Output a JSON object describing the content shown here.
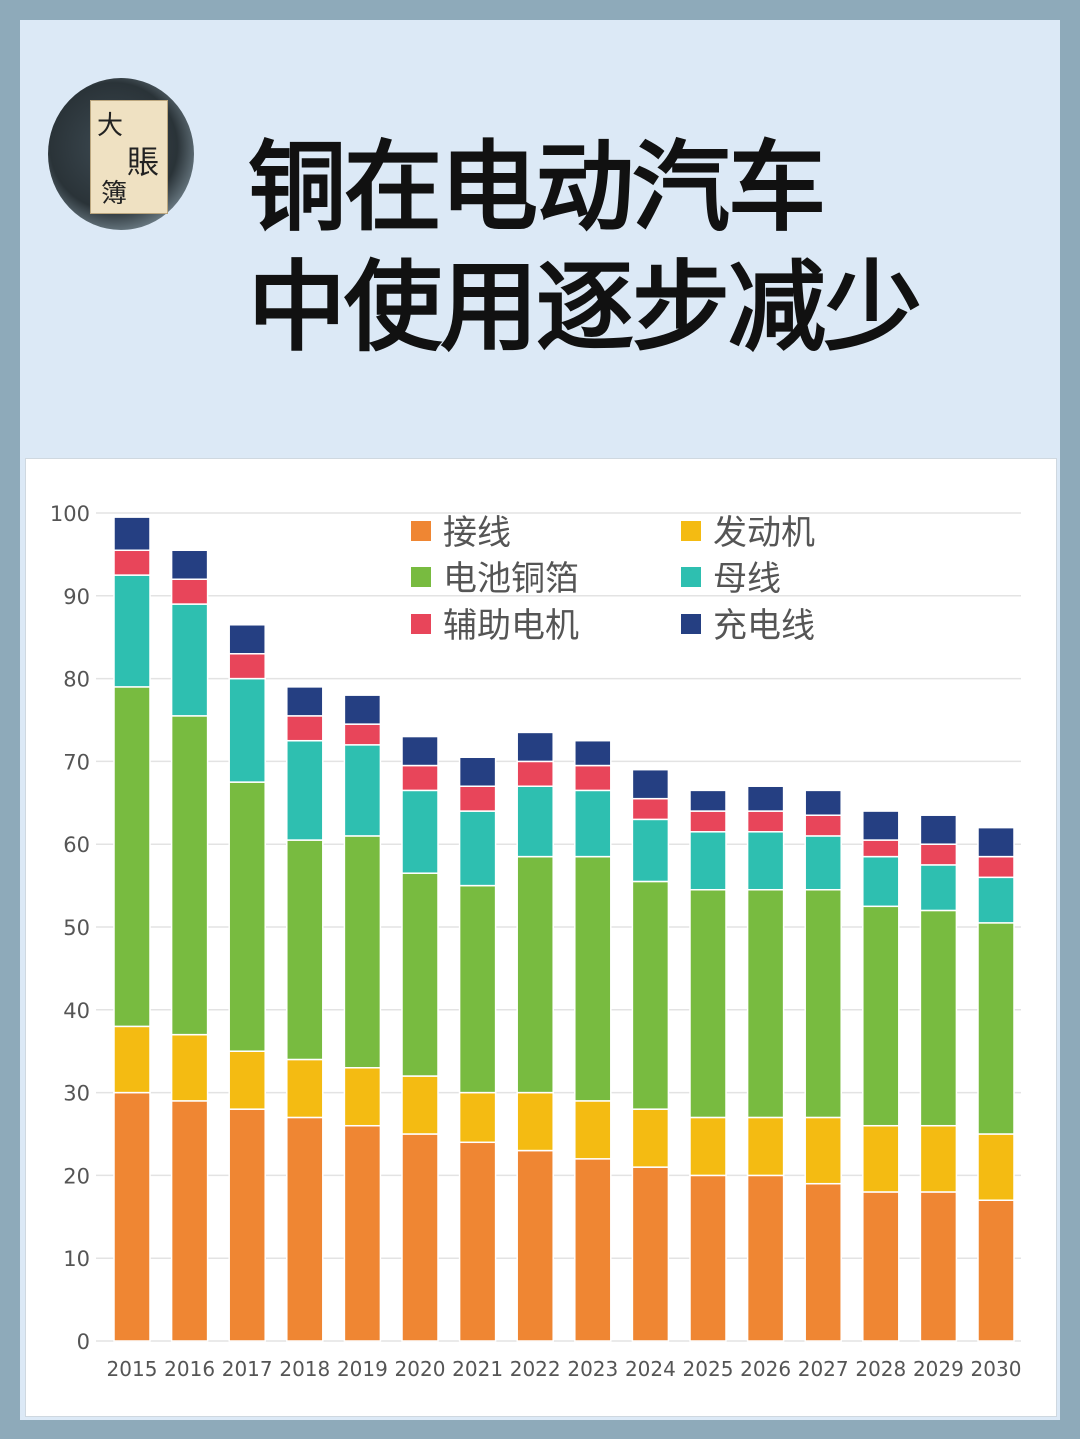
{
  "header": {
    "title_line1": "铜在电动汽车",
    "title_line2": "中使用逐步减少",
    "logo_text": "大賬簿"
  },
  "chart_data": {
    "type": "bar",
    "stacked": true,
    "title": "",
    "xlabel": "",
    "ylabel": "",
    "ylim": [
      0,
      100
    ],
    "yticks": [
      0,
      10,
      20,
      30,
      40,
      50,
      60,
      70,
      80,
      90,
      100
    ],
    "grid": true,
    "legend_position": "top-right",
    "categories": [
      "2015",
      "2016",
      "2017",
      "2018",
      "2019",
      "2020",
      "2021",
      "2022",
      "2023",
      "2024",
      "2025",
      "2026",
      "2027",
      "2028",
      "2029",
      "2030"
    ],
    "series": [
      {
        "name": "接线",
        "color": "#ef8633",
        "values": [
          30,
          29,
          28,
          27,
          26,
          25,
          24,
          23,
          22,
          21,
          20,
          20,
          19,
          18,
          18,
          17
        ]
      },
      {
        "name": "发动机",
        "color": "#f4bb12",
        "values": [
          8,
          8,
          7,
          7,
          7,
          7,
          6,
          7,
          7,
          7,
          7,
          7,
          8,
          8,
          8,
          8
        ]
      },
      {
        "name": "电池铜箔",
        "color": "#78bb40",
        "values": [
          41,
          38.5,
          32.5,
          26.5,
          28,
          24.5,
          25,
          28.5,
          29.5,
          27.5,
          27.5,
          27.5,
          27.5,
          26.5,
          26,
          25.5
        ]
      },
      {
        "name": "母线",
        "color": "#2ebfb0",
        "values": [
          13.5,
          13.5,
          12.5,
          12,
          11,
          10,
          9,
          8.5,
          8,
          7.5,
          7,
          7,
          6.5,
          6,
          5.5,
          5.5
        ]
      },
      {
        "name": "辅助电机",
        "color": "#e8455a",
        "values": [
          3,
          3,
          3,
          3,
          2.5,
          3,
          3,
          3,
          3,
          2.5,
          2.5,
          2.5,
          2.5,
          2,
          2.5,
          2.5
        ]
      },
      {
        "name": "充电线",
        "color": "#253f82",
        "values": [
          4,
          3.5,
          3.5,
          3.5,
          3.5,
          3.5,
          3.5,
          3.5,
          3,
          3.5,
          2.5,
          3,
          3,
          3.5,
          3.5,
          3.5
        ]
      }
    ]
  }
}
